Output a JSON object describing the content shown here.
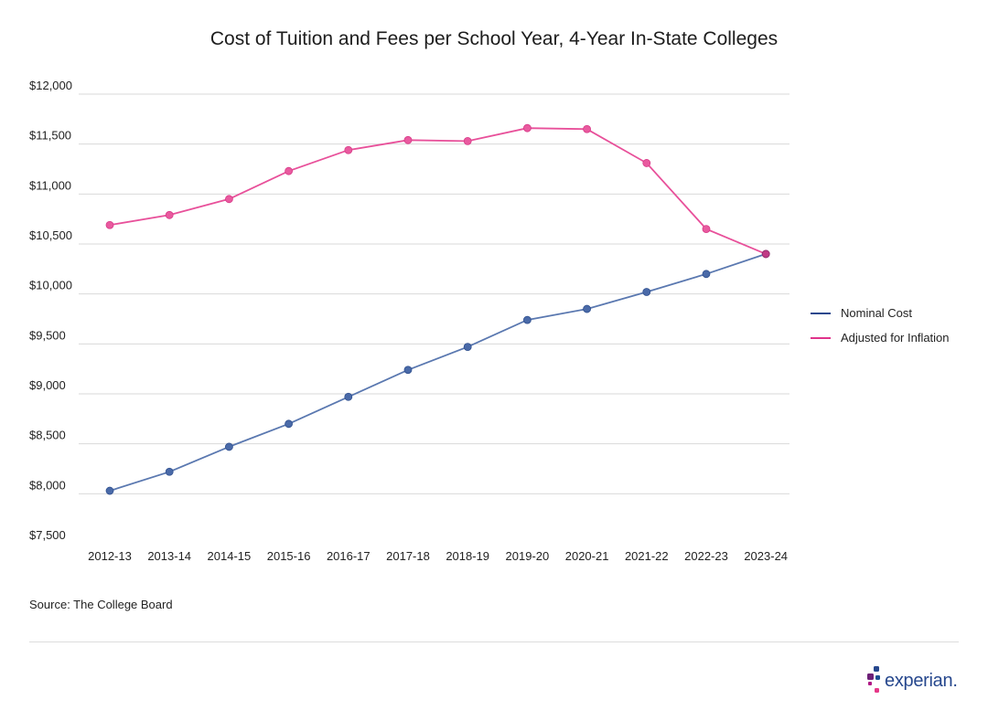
{
  "chart_data": {
    "type": "line",
    "title": "Cost of Tuition and Fees per School Year, 4-Year In-State Colleges",
    "xlabel": "",
    "ylabel": "",
    "categories": [
      "2012-13",
      "2013-14",
      "2014-15",
      "2015-16",
      "2016-17",
      "2017-18",
      "2018-19",
      "2019-20",
      "2020-21",
      "2021-22",
      "2022-23",
      "2023-24"
    ],
    "series": [
      {
        "name": "Nominal Cost",
        "color": "#3d5d9b",
        "values": [
          8030,
          8220,
          8470,
          8700,
          8970,
          9240,
          9470,
          9740,
          9850,
          10020,
          10200,
          10400
        ]
      },
      {
        "name": "Adjusted for Inflation",
        "color": "#e8509a",
        "values": [
          10690,
          10790,
          10950,
          11230,
          11440,
          11540,
          11530,
          11660,
          11650,
          11310,
          10650,
          10400
        ]
      }
    ],
    "ylim": [
      7500,
      12000
    ],
    "yticks": [
      7500,
      8000,
      8500,
      9000,
      9500,
      10000,
      10500,
      11000,
      11500,
      12000
    ],
    "ytick_labels": [
      "$7,500",
      "$8,000",
      "$8,500",
      "$9,000",
      "$9,500",
      "$10,000",
      "$10,500",
      "$11,000",
      "$11,500",
      "$12,000"
    ],
    "grid": true,
    "legend_position": "right"
  },
  "source": "Source: The College Board",
  "brand": {
    "name": "experian."
  }
}
